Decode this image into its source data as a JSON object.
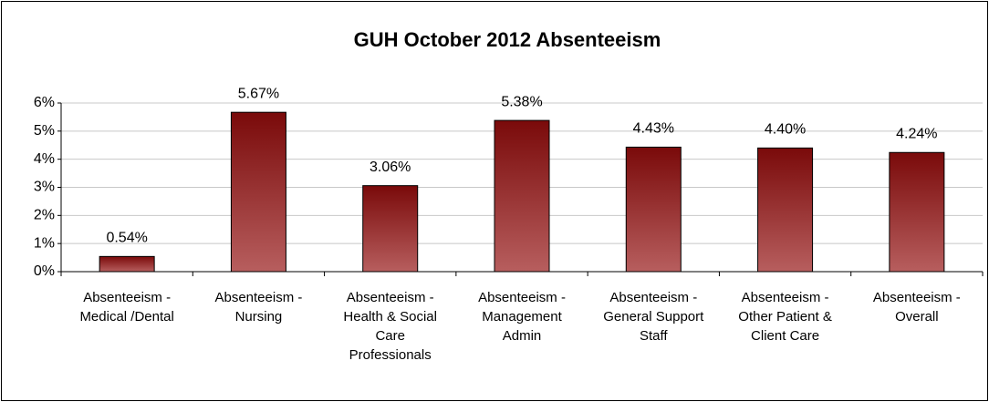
{
  "chart_data": {
    "type": "bar",
    "title": "GUH October 2012 Absenteeism",
    "categories": [
      "Absenteeism - Medical /Dental",
      "Absenteeism - Nursing",
      "Absenteeism - Health & Social Care Professionals",
      "Absenteeism - Management Admin",
      "Absenteeism - General Support Staff",
      "Absenteeism - Other Patient & Client Care",
      "Absenteeism - Overall"
    ],
    "values": [
      0.54,
      5.67,
      3.06,
      5.38,
      4.43,
      4.4,
      4.24
    ],
    "value_labels": [
      "0.54%",
      "5.67%",
      "3.06%",
      "5.38%",
      "4.43%",
      "4.40%",
      "4.24%"
    ],
    "color": "#8b1a1a",
    "ylim": [
      0,
      6
    ],
    "yticks": [
      {
        "value": 0,
        "label": "0%"
      },
      {
        "value": 1,
        "label": "1%"
      },
      {
        "value": 2,
        "label": "2%"
      },
      {
        "value": 3,
        "label": "3%"
      },
      {
        "value": 4,
        "label": "4%"
      },
      {
        "value": 5,
        "label": "5%"
      },
      {
        "value": 6,
        "label": "6%"
      }
    ],
    "grid": true
  }
}
